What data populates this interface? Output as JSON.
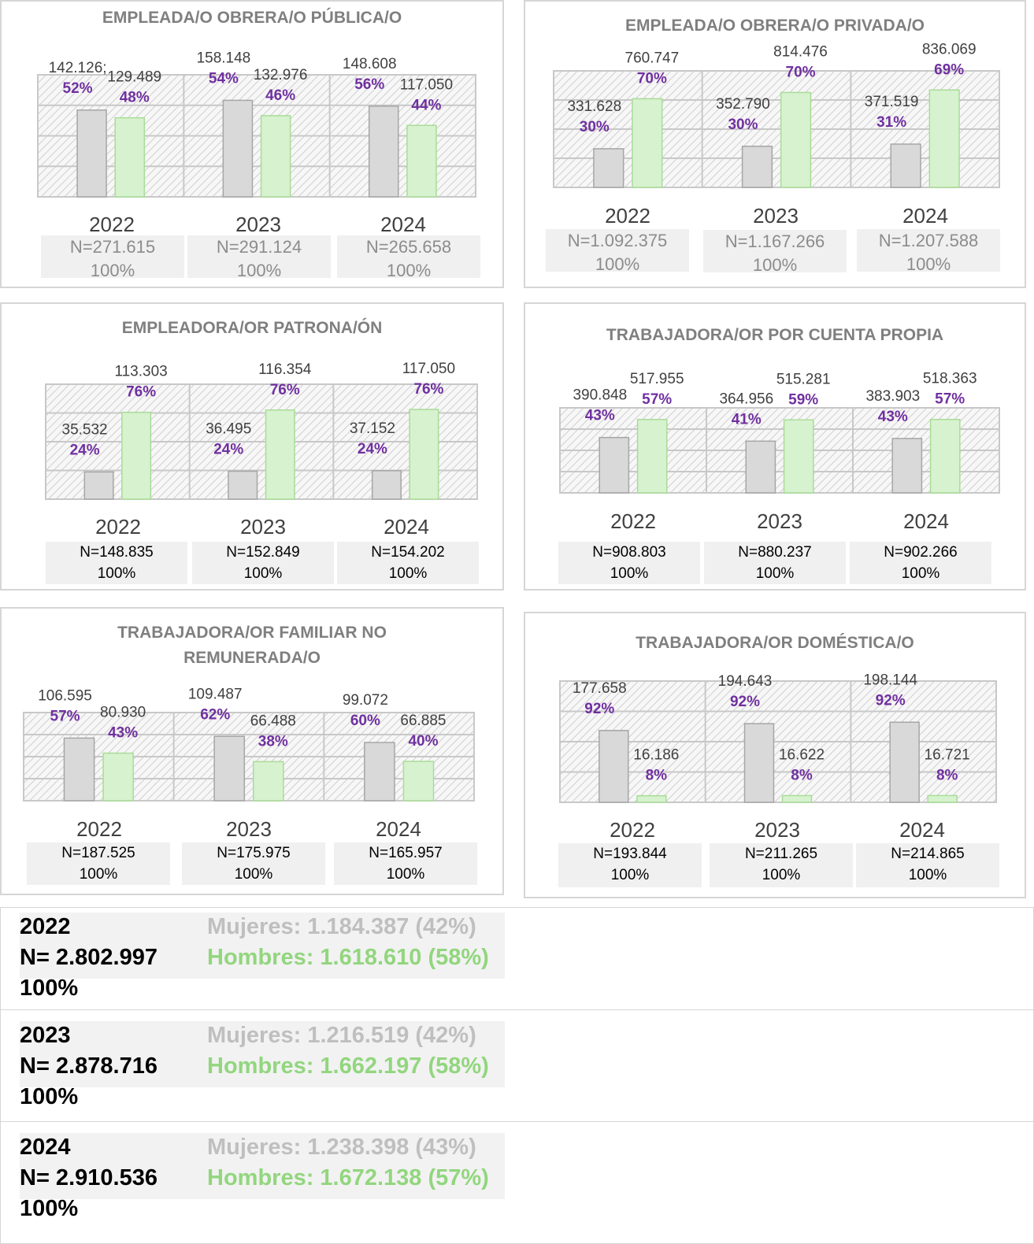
{
  "colors": {
    "women_bar": "#d9d9d9",
    "women_bar_border": "#a6a6a6",
    "men_bar": "#d7f2cf",
    "men_bar_border": "#a9dc98",
    "percent_text": "#7030a0",
    "value_text": "#404040",
    "title_text": "#7f7f7f",
    "women_total_text": "#bfbfbf",
    "men_total_text": "#92d67e"
  },
  "chart_data": [
    {
      "type": "bar",
      "title": "EMPLEADA/O OBRERA/O PÚBLICA/O",
      "categories": [
        "2022",
        "2023",
        "2024"
      ],
      "series": [
        {
          "values": [
            142126,
            158148,
            148608
          ],
          "labels": [
            "142.126;",
            "158.148",
            "148.608"
          ],
          "percents": [
            "52%",
            "54%",
            "56%"
          ]
        },
        {
          "values": [
            129489,
            132976,
            117050
          ],
          "labels": [
            "129.489",
            "132.976",
            "117.050"
          ],
          "percents": [
            "48%",
            "46%",
            "44%"
          ]
        }
      ],
      "n_labels": [
        "N=271.615",
        "N=291.124",
        "N=265.658"
      ],
      "pct_labels": [
        "100%",
        "100%",
        "100%"
      ],
      "ylim": [
        0,
        200000
      ]
    },
    {
      "type": "bar",
      "title": "EMPLEADA/O OBRERA/O PRIVADA/O",
      "categories": [
        "2022",
        "2023",
        "2024"
      ],
      "series": [
        {
          "values": [
            331628,
            352790,
            371519
          ],
          "labels": [
            "331.628",
            "352.790",
            "371.519"
          ],
          "percents": [
            "30%",
            "30%",
            "31%"
          ]
        },
        {
          "values": [
            760747,
            814476,
            836069
          ],
          "labels": [
            "760.747",
            "814.476",
            "836.069"
          ],
          "percents": [
            "70%",
            "70%",
            "69%"
          ]
        }
      ],
      "n_labels": [
        "N=1.092.375",
        "N=1.167.266",
        "N=1.207.588"
      ],
      "pct_labels": [
        "100%",
        "100%",
        "100%"
      ],
      "ylim": [
        0,
        1000000
      ]
    },
    {
      "type": "bar",
      "title": "EMPLEADORA/OR PATRONA/ÓN",
      "categories": [
        "2022",
        "2023",
        "2024"
      ],
      "series": [
        {
          "values": [
            35532,
            36495,
            37152
          ],
          "labels": [
            "35.532",
            "36.495",
            "37.152"
          ],
          "percents": [
            "24%",
            "24%",
            "24%"
          ]
        },
        {
          "values": [
            113303,
            116354,
            117050
          ],
          "labels": [
            "113.303",
            "116.354",
            "117.050"
          ],
          "percents": [
            "76%",
            "76%",
            "76%"
          ]
        }
      ],
      "n_labels": [
        "N=148.835",
        "N=152.849",
        "N=154.202"
      ],
      "pct_labels": [
        "100%",
        "100%",
        "100%"
      ],
      "ylim": [
        0,
        150000
      ]
    },
    {
      "type": "bar",
      "title": "TRABAJADORA/OR POR CUENTA PROPIA",
      "categories": [
        "2022",
        "2023",
        "2024"
      ],
      "series": [
        {
          "values": [
            390848,
            364956,
            383903
          ],
          "labels": [
            "390.848",
            "364.956",
            "383.903"
          ],
          "percents": [
            "43%",
            "41%",
            "43%"
          ]
        },
        {
          "values": [
            517955,
            515281,
            518363
          ],
          "labels": [
            "517.955",
            "515.281",
            "518.363"
          ],
          "percents": [
            "57%",
            "59%",
            "57%"
          ]
        }
      ],
      "n_labels": [
        "N=908.803",
        "N=880.237",
        "N=902.266"
      ],
      "pct_labels": [
        "100%",
        "100%",
        "100%"
      ],
      "ylim": [
        0,
        600000
      ]
    },
    {
      "type": "bar",
      "title": "TRABAJADORA/OR FAMILIAR NO REMUNERADA/O",
      "categories": [
        "2022",
        "2023",
        "2024"
      ],
      "series": [
        {
          "values": [
            106595,
            109487,
            99072
          ],
          "labels": [
            "106.595",
            "109.487",
            "99.072"
          ],
          "percents": [
            "57%",
            "62%",
            "60%"
          ]
        },
        {
          "values": [
            80930,
            66488,
            66885
          ],
          "labels": [
            "80.930",
            "66.488",
            "66.885"
          ],
          "percents": [
            "43%",
            "38%",
            "40%"
          ]
        }
      ],
      "n_labels": [
        "N=187.525",
        "N=175.975",
        "N=165.957"
      ],
      "pct_labels": [
        "100%",
        "100%",
        "100%"
      ],
      "ylim": [
        0,
        150000
      ]
    },
    {
      "type": "bar",
      "title": "TRABAJADORA/OR DOMÉSTICA/O",
      "categories": [
        "2022",
        "2023",
        "2024"
      ],
      "series": [
        {
          "values": [
            177658,
            194643,
            198144
          ],
          "labels": [
            "177.658",
            "194.643",
            "198.144"
          ],
          "percents": [
            "92%",
            "92%",
            "92%"
          ]
        },
        {
          "values": [
            16186,
            16622,
            16721
          ],
          "labels": [
            "16.186",
            "16.622",
            "16.721"
          ],
          "percents": [
            "8%",
            "8%",
            "8%"
          ]
        }
      ],
      "n_labels": [
        "N=193.844",
        "N=211.265",
        "N=214.865"
      ],
      "pct_labels": [
        "100%",
        "100%",
        "100%"
      ],
      "ylim": [
        0,
        300000
      ]
    }
  ],
  "totals": [
    {
      "year": "2022",
      "n": "N= 2.802.997",
      "pct": "100%",
      "women": "Mujeres: 1.184.387 (42%)",
      "men": "Hombres: 1.618.610 (58%)"
    },
    {
      "year": "2023",
      "n": "N= 2.878.716",
      "pct": "100%",
      "women": "Mujeres: 1.216.519 (42%)",
      "men": "Hombres: 1.662.197 (58%)"
    },
    {
      "year": "2024",
      "n": "N= 2.910.536",
      "pct": "100%",
      "women": "Mujeres: 1.238.398 (43%)",
      "men": "Hombres: 1.672.138 (57%)"
    }
  ]
}
